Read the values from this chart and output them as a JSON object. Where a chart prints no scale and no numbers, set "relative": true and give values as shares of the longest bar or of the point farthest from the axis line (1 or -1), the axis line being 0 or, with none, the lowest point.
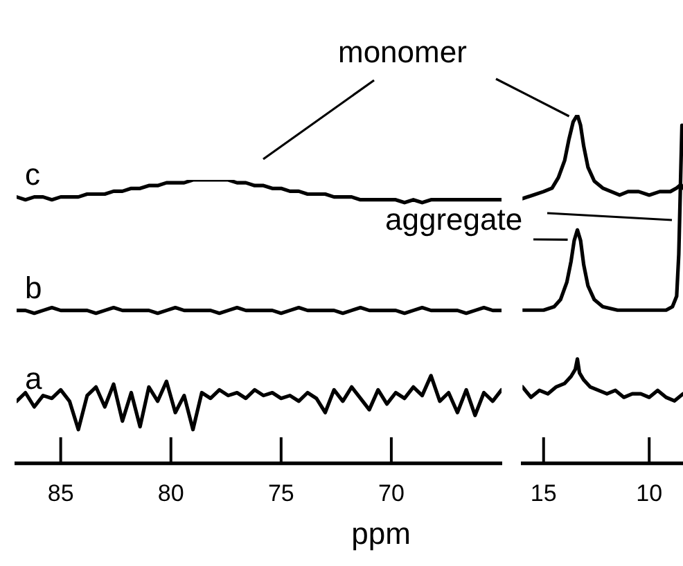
{
  "chart_data": [
    {
      "type": "line",
      "relative": true,
      "marker": "none",
      "xlabel": "ppm",
      "xlim": [
        87,
        65
      ],
      "xticks": [
        85,
        80,
        75,
        70
      ],
      "x": [
        87,
        86.6,
        86.2,
        85.8,
        85.4,
        85,
        84.6,
        84.2,
        83.8,
        83.4,
        83,
        82.6,
        82.2,
        81.8,
        81.4,
        81,
        80.6,
        80.2,
        79.8,
        79.4,
        79,
        78.6,
        78.2,
        77.8,
        77.4,
        77,
        76.6,
        76.2,
        75.8,
        75.4,
        75,
        74.6,
        74.2,
        73.8,
        73.4,
        73,
        72.6,
        72.2,
        71.8,
        71.4,
        71,
        70.6,
        70.2,
        69.8,
        69.4,
        69,
        68.6,
        68.2,
        67.8,
        67.4,
        67,
        66.6,
        66.2,
        65.8,
        65.4,
        65
      ],
      "series": [
        {
          "name": "a",
          "color": "#000000",
          "values": [
            0.22,
            0.25,
            0.2,
            0.24,
            0.23,
            0.26,
            0.22,
            0.12,
            0.24,
            0.27,
            0.2,
            0.28,
            0.15,
            0.25,
            0.13,
            0.27,
            0.22,
            0.29,
            0.18,
            0.24,
            0.12,
            0.25,
            0.23,
            0.26,
            0.24,
            0.25,
            0.23,
            0.26,
            0.24,
            0.25,
            0.23,
            0.24,
            0.22,
            0.25,
            0.23,
            0.18,
            0.26,
            0.22,
            0.27,
            0.23,
            0.19,
            0.26,
            0.21,
            0.25,
            0.23,
            0.27,
            0.24,
            0.31,
            0.22,
            0.25,
            0.18,
            0.26,
            0.17,
            0.25,
            0.22,
            0.26
          ]
        },
        {
          "name": "b",
          "color": "#000000",
          "values": [
            0.54,
            0.54,
            0.53,
            0.54,
            0.55,
            0.54,
            0.54,
            0.54,
            0.54,
            0.53,
            0.54,
            0.55,
            0.54,
            0.54,
            0.54,
            0.54,
            0.53,
            0.54,
            0.55,
            0.54,
            0.54,
            0.54,
            0.54,
            0.53,
            0.54,
            0.55,
            0.54,
            0.54,
            0.54,
            0.54,
            0.53,
            0.54,
            0.55,
            0.54,
            0.54,
            0.54,
            0.54,
            0.53,
            0.54,
            0.55,
            0.54,
            0.54,
            0.54,
            0.54,
            0.53,
            0.54,
            0.55,
            0.54,
            0.54,
            0.54,
            0.54,
            0.53,
            0.54,
            0.55,
            0.54,
            0.54
          ]
        },
        {
          "name": "c",
          "color": "#000000",
          "values": [
            0.94,
            0.93,
            0.94,
            0.94,
            0.93,
            0.94,
            0.94,
            0.94,
            0.95,
            0.95,
            0.95,
            0.96,
            0.96,
            0.97,
            0.97,
            0.98,
            0.98,
            0.99,
            0.99,
            0.99,
            1.0,
            1.0,
            1.0,
            1.0,
            1.0,
            0.99,
            0.99,
            0.98,
            0.98,
            0.97,
            0.97,
            0.96,
            0.96,
            0.95,
            0.95,
            0.95,
            0.94,
            0.94,
            0.94,
            0.93,
            0.93,
            0.93,
            0.93,
            0.93,
            0.92,
            0.93,
            0.92,
            0.93,
            0.93,
            0.93,
            0.93,
            0.93,
            0.93,
            0.93,
            0.93,
            0.93
          ]
        }
      ]
    },
    {
      "type": "line",
      "relative": true,
      "marker": "none",
      "xlim": [
        16,
        8.4
      ],
      "xticks": [
        15,
        10
      ],
      "annotations": [
        {
          "text": "monomer",
          "x": 13.4,
          "y": 1.0
        },
        {
          "text": "aggregate",
          "x": 13.4,
          "y": 0.67
        }
      ],
      "series": [
        {
          "color": "#000000",
          "x": [
            16,
            15.6,
            15.2,
            14.8,
            14.4,
            14.0,
            13.7,
            13.5,
            13.4,
            13.3,
            13.1,
            12.8,
            12.4,
            12,
            11.6,
            11.2,
            10.8,
            10.4,
            10,
            9.6,
            9.2,
            8.8,
            8.4
          ],
          "values": [
            0.22,
            0.19,
            0.21,
            0.2,
            0.22,
            0.23,
            0.25,
            0.27,
            0.3,
            0.26,
            0.24,
            0.22,
            0.21,
            0.2,
            0.21,
            0.19,
            0.2,
            0.2,
            0.19,
            0.21,
            0.19,
            0.18,
            0.2
          ]
        },
        {
          "color": "#000000",
          "x": [
            16,
            15,
            14.5,
            14.2,
            13.9,
            13.7,
            13.55,
            13.4,
            13.25,
            13.1,
            12.9,
            12.6,
            12.2,
            11.5,
            11,
            10,
            9.2,
            8.9,
            8.7,
            8.6,
            8.5,
            8.45
          ],
          "values": [
            0.44,
            0.44,
            0.45,
            0.47,
            0.52,
            0.58,
            0.64,
            0.67,
            0.64,
            0.57,
            0.51,
            0.47,
            0.45,
            0.44,
            0.44,
            0.44,
            0.44,
            0.45,
            0.48,
            0.6,
            0.85,
            0.97
          ]
        },
        {
          "color": "#000000",
          "x": [
            16,
            15.5,
            15,
            14.6,
            14.3,
            14.0,
            13.8,
            13.6,
            13.4,
            13.25,
            13.1,
            12.9,
            12.6,
            12.2,
            11.8,
            11.4,
            11,
            10.5,
            10,
            9.5,
            9,
            8.7,
            8.5,
            8.4
          ],
          "values": [
            0.76,
            0.77,
            0.78,
            0.79,
            0.82,
            0.87,
            0.93,
            0.98,
            1.0,
            0.97,
            0.91,
            0.85,
            0.81,
            0.79,
            0.78,
            0.77,
            0.78,
            0.78,
            0.77,
            0.78,
            0.78,
            0.79,
            0.8,
            0.79
          ]
        }
      ]
    }
  ]
}
